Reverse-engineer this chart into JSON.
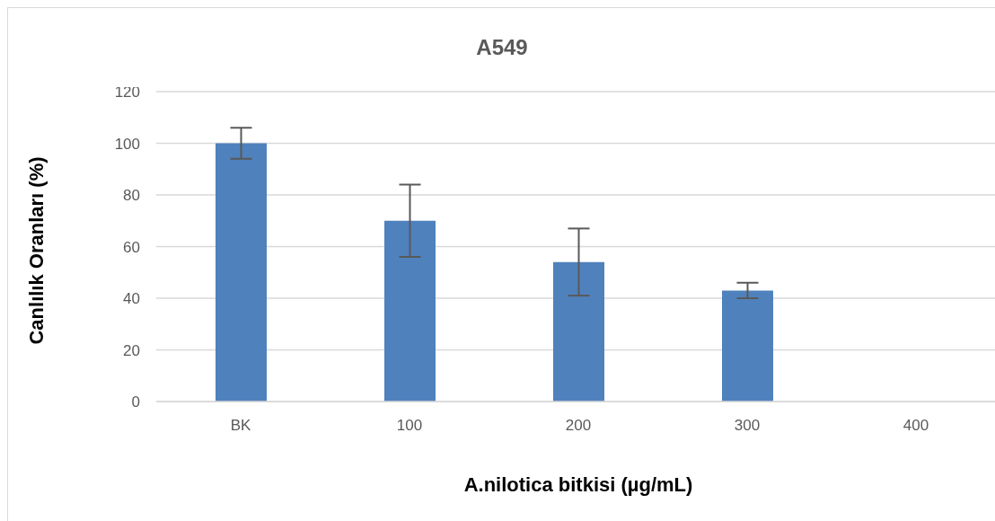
{
  "chart_data": {
    "type": "bar",
    "title": "A549",
    "xlabel": "A.nilotica bitkisi (µg/mL)",
    "ylabel": "Canlılık Oranları (%)",
    "categories": [
      "BK",
      "100",
      "200",
      "300",
      "400"
    ],
    "values": [
      100,
      70,
      54,
      43,
      0
    ],
    "errors": [
      6,
      14,
      13,
      3,
      null
    ],
    "color": "#4f81bd",
    "ylim": [
      0,
      120
    ],
    "yticks": [
      0,
      20,
      40,
      60,
      80,
      100,
      120
    ],
    "grid": "y",
    "legend": false
  }
}
